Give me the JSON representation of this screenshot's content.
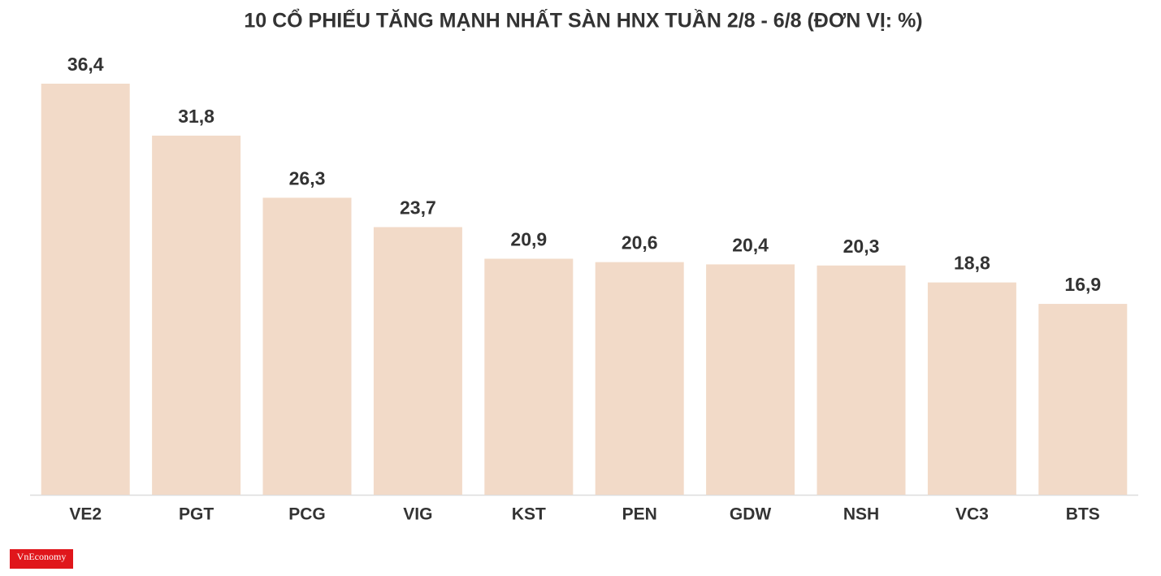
{
  "chart_data": {
    "type": "bar",
    "title": "10 CỔ PHIẾU TĂNG MẠNH NHẤT SÀN HNX TUẦN 2/8 - 6/8 (ĐƠN VỊ: %)",
    "categories": [
      "VE2",
      "PGT",
      "PCG",
      "VIG",
      "KST",
      "PEN",
      "GDW",
      "NSH",
      "VC3",
      "BTS"
    ],
    "values": [
      36.4,
      31.8,
      26.3,
      23.7,
      20.9,
      20.6,
      20.4,
      20.3,
      18.8,
      16.9
    ],
    "value_labels": [
      "36,4",
      "31,8",
      "26,3",
      "23,7",
      "20,9",
      "20,6",
      "20,4",
      "20,3",
      "18,8",
      "16,9"
    ],
    "color": "#f2dac8",
    "source": "VnEconomy"
  }
}
